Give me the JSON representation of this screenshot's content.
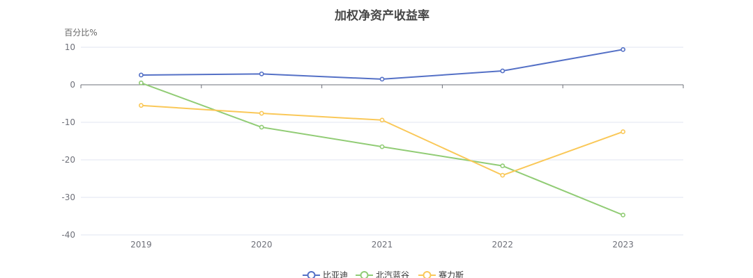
{
  "chart_data": {
    "type": "line",
    "title": "加权净资产收益率",
    "y_unit": "百分比%",
    "categories": [
      "2019",
      "2020",
      "2021",
      "2022",
      "2023"
    ],
    "ylim": [
      -40,
      10
    ],
    "yticks": [
      10,
      0,
      -10,
      -20,
      -30,
      -40
    ],
    "grid": true,
    "legend_position": "bottom-center",
    "series": [
      {
        "name": "比亚迪",
        "color": "#5470c6",
        "values": [
          2.6,
          2.9,
          1.5,
          3.7,
          9.4
        ]
      },
      {
        "name": "北汽蓝谷",
        "color": "#91cc75",
        "values": [
          0.5,
          -11.3,
          -16.5,
          -21.6,
          -34.7
        ]
      },
      {
        "name": "赛力斯",
        "color": "#fac858",
        "values": [
          -5.5,
          -7.6,
          -9.4,
          -24.1,
          -12.5
        ]
      }
    ]
  }
}
